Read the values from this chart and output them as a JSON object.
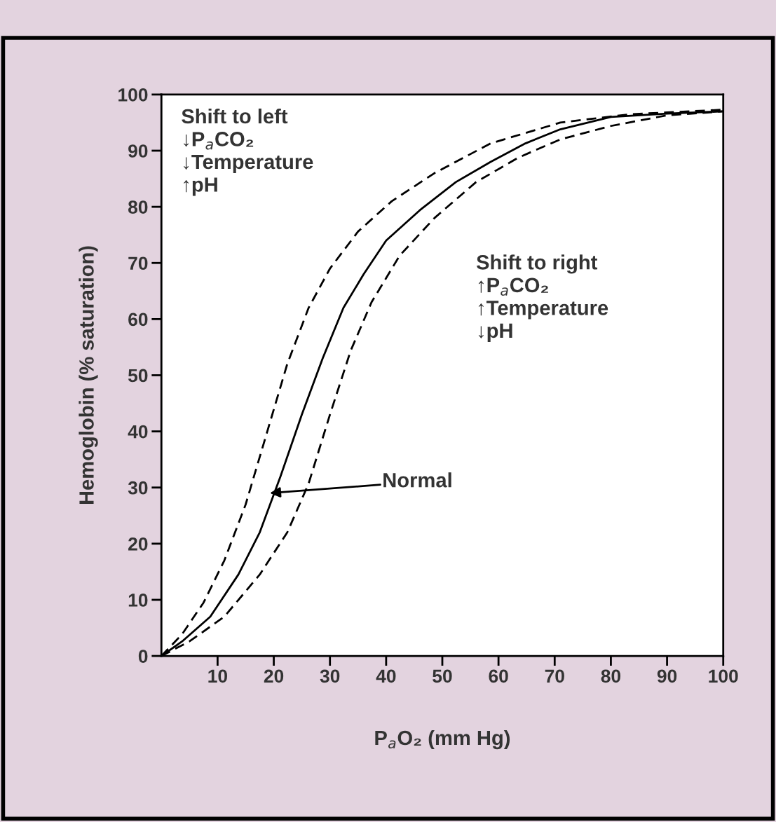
{
  "chart_data": {
    "type": "line",
    "xlabel": "P$_{a}$O₂ (mm Hg)",
    "ylabel": "Hemoglobin (% saturation)",
    "xlim": [
      0,
      100
    ],
    "ylim": [
      0,
      100
    ],
    "xticks": [
      10,
      20,
      30,
      40,
      50,
      60,
      70,
      80,
      90,
      100
    ],
    "yticks": [
      0,
      10,
      20,
      30,
      40,
      50,
      60,
      70,
      80,
      90,
      100
    ],
    "grid": false,
    "marker": "none",
    "series": [
      {
        "color": "#000000",
        "line_style": "dashed",
        "x": [
          0,
          3.7,
          7.5,
          11.2,
          15,
          18.7,
          22.4,
          26.2,
          30,
          35,
          41,
          48.6,
          58.6,
          71,
          83.5,
          100
        ],
        "values": [
          0,
          3.9,
          9.5,
          17,
          27,
          39.5,
          52,
          62,
          69,
          75.6,
          81,
          86,
          91.3,
          95,
          96.5,
          97.3
        ]
      },
      {
        "color": "#000000",
        "line_style": "solid",
        "x": [
          0,
          3.7,
          8.7,
          13.7,
          17.5,
          21.2,
          25,
          28.7,
          32.4,
          36,
          40,
          46,
          52.4,
          58.6,
          64.8,
          71,
          80,
          90,
          100
        ],
        "values": [
          0,
          2.6,
          7,
          14.5,
          22,
          32,
          43,
          53,
          62,
          68,
          74,
          79.4,
          84.4,
          88,
          91.3,
          93.8,
          96,
          96.6,
          97
        ]
      },
      {
        "color": "#000000",
        "line_style": "dashed",
        "x": [
          0,
          5,
          11.2,
          17.5,
          22.4,
          26.2,
          30,
          33.7,
          37.4,
          42.4,
          48.6,
          56,
          63.6,
          71,
          80,
          90,
          100
        ],
        "values": [
          0,
          2.6,
          7,
          14.5,
          22,
          30.7,
          43,
          54.4,
          63,
          71.3,
          78,
          84.4,
          88.8,
          92,
          94.4,
          96.3,
          97
        ]
      }
    ],
    "annotations": [
      "Shift to left\n↓P$_{a}$CO₂\n↓Temperature\n↑pH",
      "Shift to right\n↑P$_{a}$CO₂\n↑Temperature\n↓pH",
      {
        "text": "Normal",
        "x": 19.3,
        "y": 29
      }
    ]
  }
}
